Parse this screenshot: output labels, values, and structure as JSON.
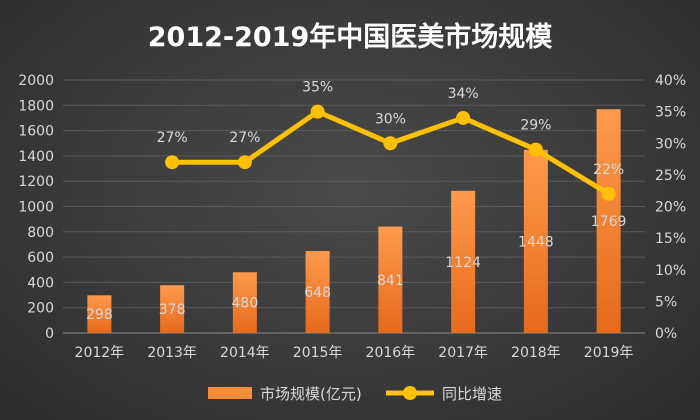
{
  "chart_data": {
    "type": "bar+line",
    "title": "2012-2019年中国医美市场规模",
    "categories": [
      "2012年",
      "2013年",
      "2014年",
      "2015年",
      "2016年",
      "2017年",
      "2018年",
      "2019年"
    ],
    "series": [
      {
        "name": "市场规模(亿元)",
        "type": "bar",
        "axis": "left",
        "values": [
          298,
          378,
          480,
          648,
          841,
          1124,
          1448,
          1769
        ],
        "labels": [
          "298",
          "378",
          "480",
          "648",
          "841",
          "1124",
          "1448",
          "1769"
        ]
      },
      {
        "name": "同比增速",
        "type": "line",
        "axis": "right",
        "values": [
          null,
          27,
          27,
          35,
          30,
          34,
          29,
          22
        ],
        "labels": [
          null,
          "27%",
          "27%",
          "35%",
          "30%",
          "34%",
          "29%",
          "22%"
        ]
      }
    ],
    "y_left": {
      "min": 0,
      "max": 2000,
      "ticks": [
        "0",
        "200",
        "400",
        "600",
        "800",
        "1000",
        "1200",
        "1400",
        "1600",
        "1800",
        "2000"
      ]
    },
    "y_right": {
      "min": 0,
      "max": 40,
      "ticks": [
        "0%",
        "5%",
        "10%",
        "15%",
        "20%",
        "25%",
        "30%",
        "35%",
        "40%"
      ]
    },
    "grid": true,
    "legend_position": "bottom",
    "colors": {
      "bar": "#ff8c3a",
      "bar_dark": "#e0671a",
      "line": "#ffc000",
      "text": "#d9d9d9",
      "title": "#ffffff",
      "axis": "#7a7a7a"
    }
  }
}
